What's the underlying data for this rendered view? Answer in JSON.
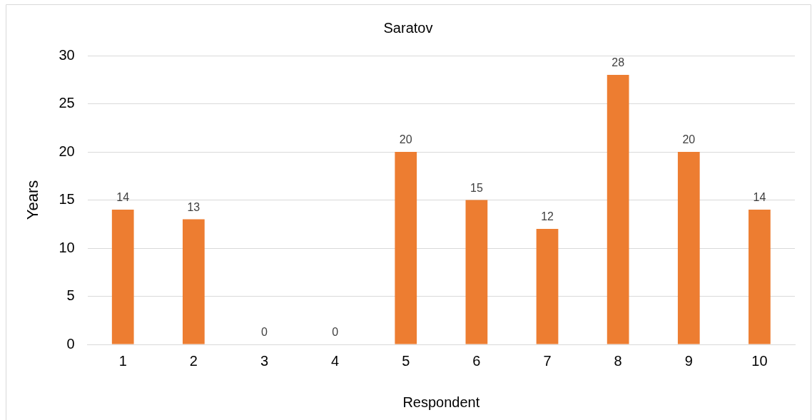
{
  "chart_data": {
    "type": "bar",
    "title": "Saratov",
    "xlabel": "Respondent",
    "ylabel": "Years",
    "categories": [
      "1",
      "2",
      "3",
      "4",
      "5",
      "6",
      "7",
      "8",
      "9",
      "10"
    ],
    "values": [
      14,
      13,
      0,
      0,
      20,
      15,
      12,
      28,
      20,
      14
    ],
    "color": "#ed7d31",
    "ylim": [
      0,
      30
    ],
    "yticks": [
      0,
      5,
      10,
      15,
      20,
      25,
      30
    ],
    "grid": "y",
    "data_labels": true
  }
}
